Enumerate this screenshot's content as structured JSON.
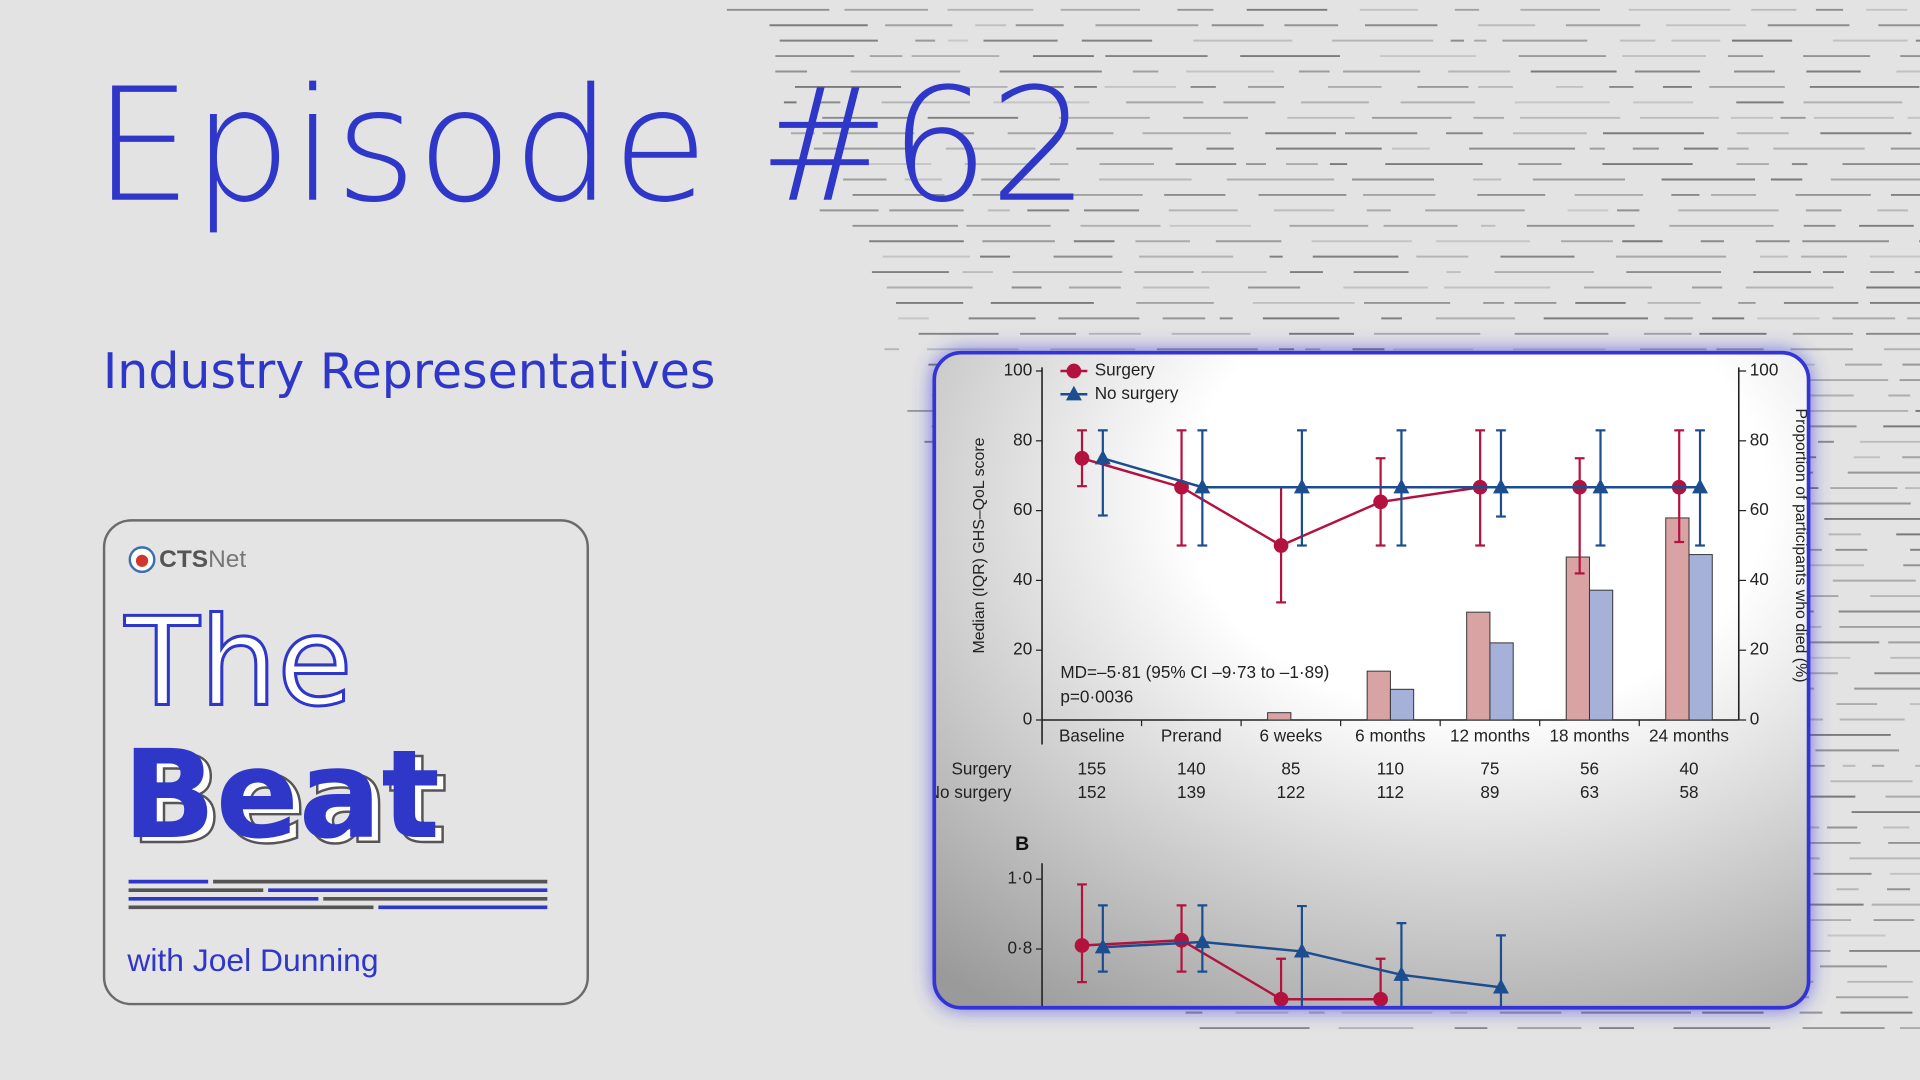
{
  "header": {
    "title": "Episode #62",
    "subtitle": "Industry Representatives"
  },
  "cover": {
    "logo_bold": "CTS",
    "logo_light": "Net",
    "title_line1": "The",
    "title_line2": "Beat",
    "host": "with Joel Dunning"
  },
  "chart_data": [
    {
      "type": "line",
      "categories": [
        "Baseline",
        "Prerand",
        "6 weeks",
        "6 months",
        "12 months",
        "18 months",
        "24 months"
      ],
      "ylabel": "Median (IQR) GHS–QoL score",
      "y2label": "Proportion of participants who died (%)",
      "ylim": [
        0,
        100
      ],
      "yticks": [
        0,
        20,
        40,
        60,
        80,
        100
      ],
      "y2lim": [
        0,
        100
      ],
      "y2ticks": [
        0,
        20,
        40,
        60,
        80,
        100
      ],
      "legend": "top-left",
      "series": [
        {
          "name": "Surgery",
          "color": "#b3123f",
          "marker": "circle",
          "values": [
            75,
            66.7,
            50,
            62.5,
            66.7,
            66.7,
            66.7
          ],
          "q1": [
            67,
            50,
            33.7,
            50,
            50,
            42,
            51
          ],
          "q3": [
            83,
            83,
            66.7,
            75,
            83,
            75,
            83
          ]
        },
        {
          "name": "No surgery",
          "color": "#1b4d8f",
          "marker": "triangle",
          "values": [
            75,
            66.7,
            66.7,
            66.7,
            66.7,
            66.7,
            66.7
          ],
          "q1": [
            58.6,
            50,
            50,
            50,
            58.3,
            50,
            50
          ],
          "q3": [
            83,
            83,
            83,
            83,
            83,
            83,
            83
          ]
        },
        {
          "type": "bar",
          "axis": "y2",
          "color": "#d9a3a3",
          "values": [
            0,
            0,
            2.1,
            14,
            30.9,
            46.7,
            57.9
          ]
        },
        {
          "type": "bar",
          "axis": "y2",
          "color": "#a5b1d8",
          "values": [
            0,
            0,
            0,
            8.8,
            22.1,
            37.2,
            47.4
          ]
        }
      ],
      "annotations": [
        "MD=–5·81 (95% CI –9·73 to –1·89)",
        "p=0·0036"
      ],
      "number_at_risk": [
        {
          "label": "Surgery",
          "values": [
            155,
            140,
            85,
            110,
            75,
            56,
            40
          ]
        },
        {
          "label": "No surgery",
          "values": [
            152,
            139,
            122,
            112,
            89,
            63,
            58
          ]
        }
      ]
    },
    {
      "type": "line",
      "panel_label": "B",
      "ylim": [
        0.6,
        1.0
      ],
      "yticks": [
        {
          "value": 0.8,
          "label": "0·8"
        },
        {
          "value": 1.0,
          "label": "1·0"
        }
      ],
      "series": [
        {
          "color": "#b3123f",
          "marker": "circle",
          "values": [
            0.81,
            0.825,
            0.656,
            0.656
          ],
          "q1": [
            0.705,
            0.735,
            null,
            null
          ],
          "q3": [
            0.985,
            0.925,
            0.772,
            0.772
          ]
        },
        {
          "color": "#1b4d8f",
          "marker": "triangle",
          "values": [
            0.805,
            0.82,
            0.793,
            0.726,
            0.69
          ],
          "q1": [
            0.735,
            0.735,
            null,
            null,
            null
          ],
          "q3": [
            0.925,
            0.925,
            0.923,
            0.874,
            0.839
          ]
        }
      ]
    }
  ]
}
